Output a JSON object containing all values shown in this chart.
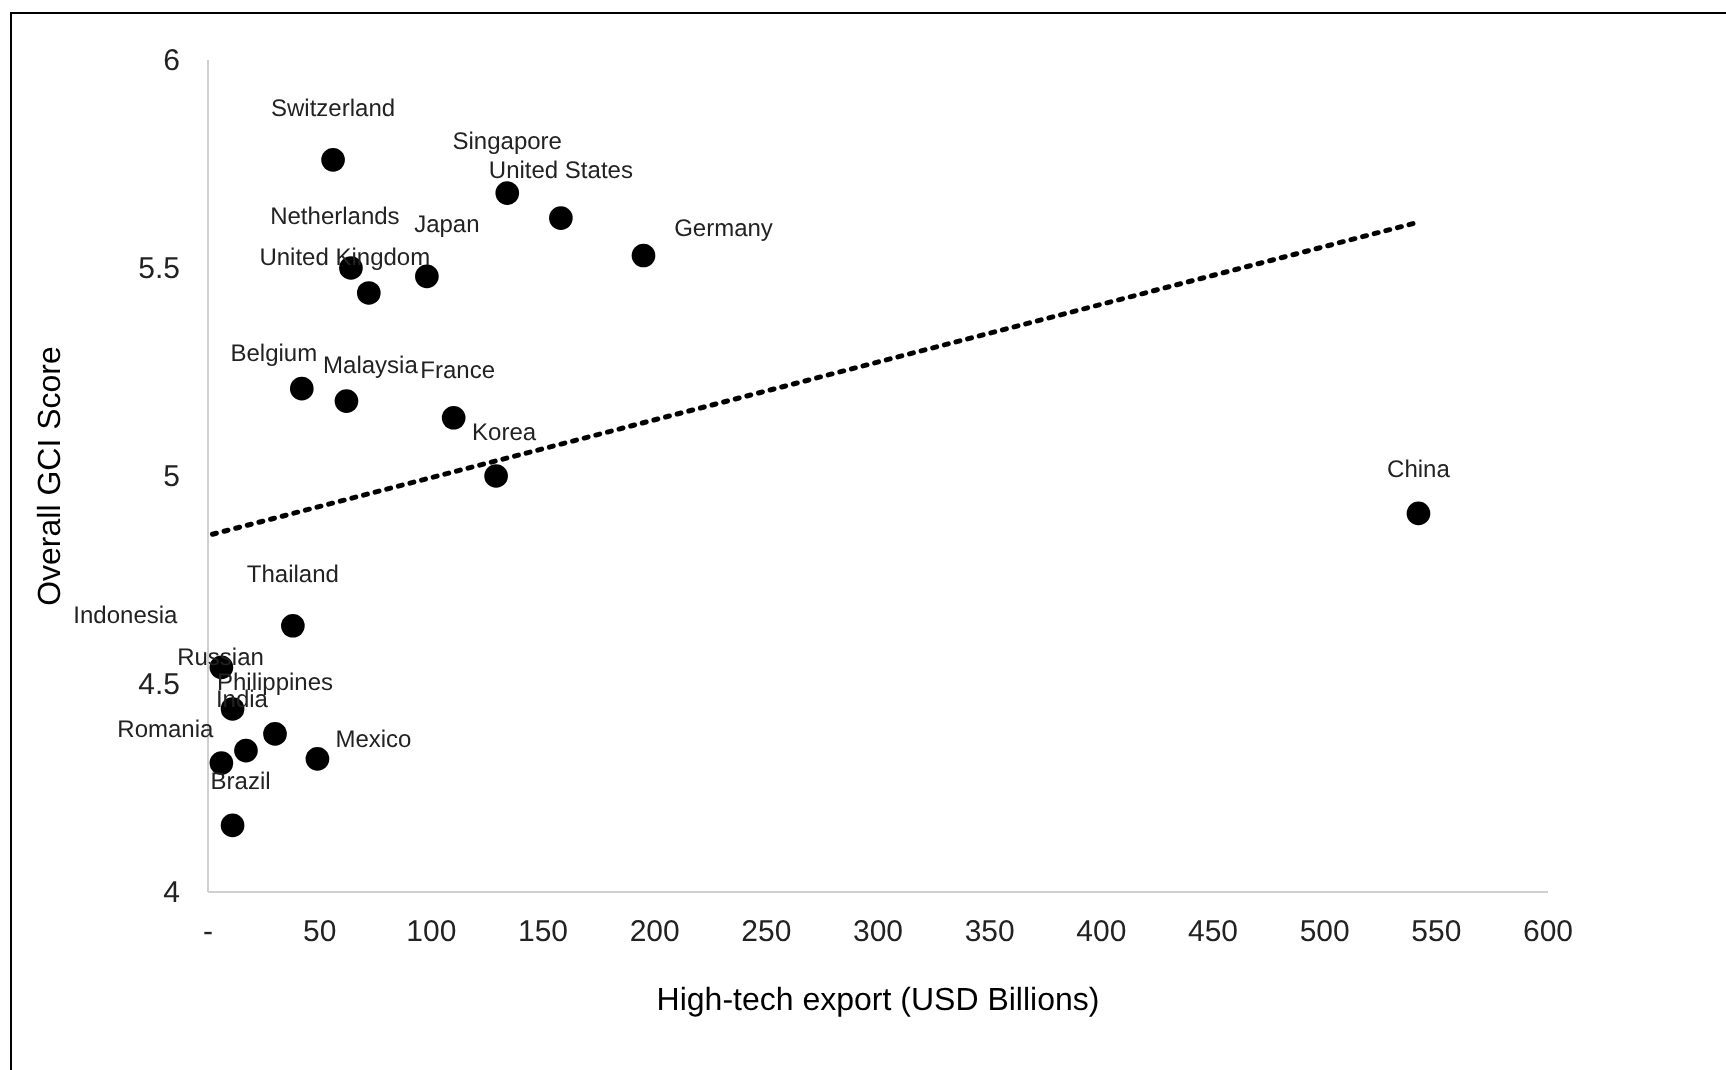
{
  "chart_data": {
    "type": "scatter",
    "xlabel": "High-tech export (USD Billions)",
    "ylabel": "Overall GCI Score",
    "xlim": [
      0,
      600
    ],
    "xticks": [
      {
        "value": 0,
        "label": "-"
      },
      50,
      100,
      150,
      200,
      250,
      300,
      350,
      400,
      450,
      500,
      550,
      600
    ],
    "ylim": [
      4,
      6
    ],
    "yticks": [
      4,
      4.5,
      5,
      5.5,
      6
    ],
    "grid": false,
    "series": [
      {
        "marker": "circle",
        "color": "#000000",
        "x": [
          56,
          134,
          158,
          195,
          64,
          72,
          98,
          42,
          62,
          110,
          129,
          542,
          38,
          6,
          11,
          30,
          17,
          49,
          6,
          11
        ],
        "values": [
          5.76,
          5.68,
          5.62,
          5.53,
          5.5,
          5.44,
          5.48,
          5.21,
          5.18,
          5.14,
          5.0,
          4.91,
          4.64,
          4.54,
          4.44,
          4.38,
          4.34,
          4.32,
          4.31,
          4.16
        ]
      },
      {
        "type": "line",
        "color": "#000000",
        "line_style": "dotted",
        "x": [
          2,
          542
        ],
        "values": [
          4.86,
          5.61
        ]
      }
    ],
    "annotations": [
      {
        "text": "Switzerland",
        "x": 56,
        "y": 5.76
      },
      {
        "text": "Singapore",
        "x": 134,
        "y": 5.68
      },
      {
        "text": "United States",
        "x": 158,
        "y": 5.62
      },
      {
        "text": "Germany",
        "x": 195,
        "y": 5.53
      },
      {
        "text": "Netherlands",
        "x": 64,
        "y": 5.5
      },
      {
        "text": "United Kingdom",
        "x": 72,
        "y": 5.44
      },
      {
        "text": "Japan",
        "x": 98,
        "y": 5.48
      },
      {
        "text": "Belgium",
        "x": 42,
        "y": 5.21
      },
      {
        "text": "Malaysia",
        "x": 62,
        "y": 5.18
      },
      {
        "text": "France",
        "x": 110,
        "y": 5.14
      },
      {
        "text": "Korea",
        "x": 129,
        "y": 5.0
      },
      {
        "text": "China",
        "x": 542,
        "y": 4.91
      },
      {
        "text": "Thailand",
        "x": 38,
        "y": 4.64
      },
      {
        "text": "Indonesia",
        "x": 6,
        "y": 4.54
      },
      {
        "text": "Russian",
        "x": 11,
        "y": 4.44
      },
      {
        "text": "Philippines",
        "x": 30,
        "y": 4.38
      },
      {
        "text": "India",
        "x": 17,
        "y": 4.34
      },
      {
        "text": "Mexico",
        "x": 49,
        "y": 4.32
      },
      {
        "text": "Romania",
        "x": 6,
        "y": 4.31
      },
      {
        "text": "Brazil",
        "x": 11,
        "y": 4.16
      }
    ]
  }
}
